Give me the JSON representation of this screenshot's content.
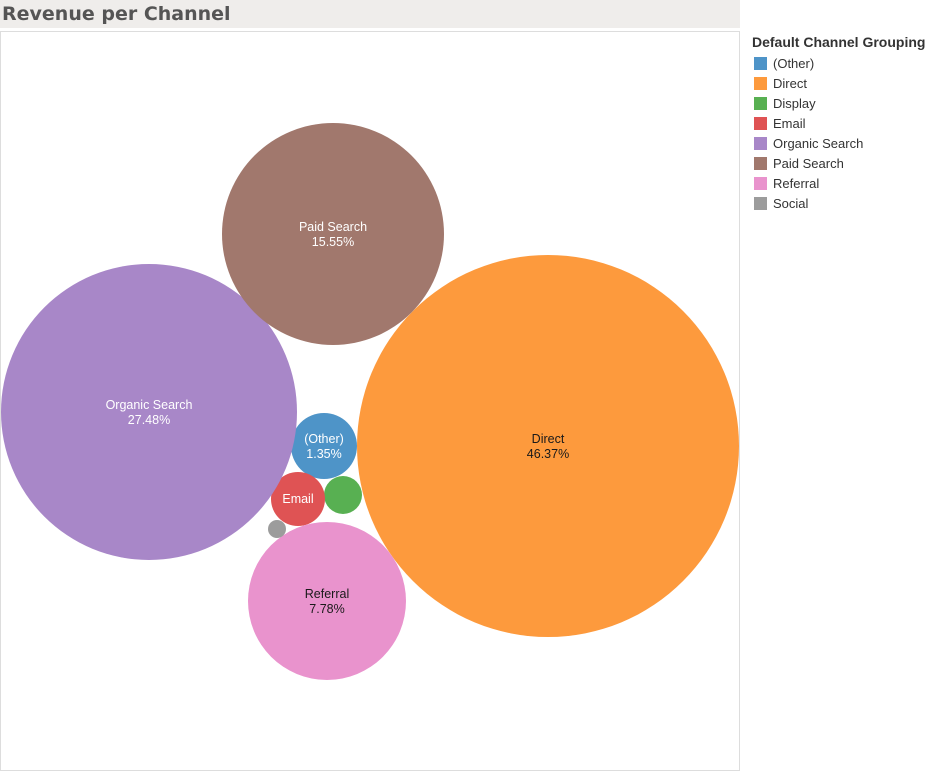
{
  "chart_data": {
    "type": "bubble",
    "title": "Revenue per Channel",
    "legend_title": "Default Channel Grouping",
    "legend_position": "right",
    "grid": false,
    "series": [
      {
        "name": "(Other)",
        "value": 1.35,
        "label": "(Other)",
        "value_label": "1.35%",
        "color": "#4e94c8",
        "text_color": "#ffffff"
      },
      {
        "name": "Direct",
        "value": 46.37,
        "label": "Direct",
        "value_label": "46.37%",
        "color": "#fd9a3d",
        "text_color": "#1a1a1a"
      },
      {
        "name": "Display",
        "value": 0.95,
        "label": "",
        "value_label": "",
        "color": "#58b052",
        "text_color": "#ffffff"
      },
      {
        "name": "Email",
        "value": 1.2,
        "label": "Email",
        "value_label": "",
        "color": "#df5354",
        "text_color": "#ffffff"
      },
      {
        "name": "Organic Search",
        "value": 27.48,
        "label": "Organic Search",
        "value_label": "27.48%",
        "color": "#a887c8",
        "text_color": "#ffffff"
      },
      {
        "name": "Paid Search",
        "value": 15.55,
        "label": "Paid Search",
        "value_label": "15.55%",
        "color": "#a1786d",
        "text_color": "#ffffff"
      },
      {
        "name": "Referral",
        "value": 7.78,
        "label": "Referral",
        "value_label": "7.78%",
        "color": "#e993cd",
        "text_color": "#1a1a1a"
      },
      {
        "name": "Social",
        "value": 0.2,
        "label": "",
        "value_label": "",
        "color": "#9c9c9c",
        "text_color": "#ffffff"
      }
    ]
  }
}
